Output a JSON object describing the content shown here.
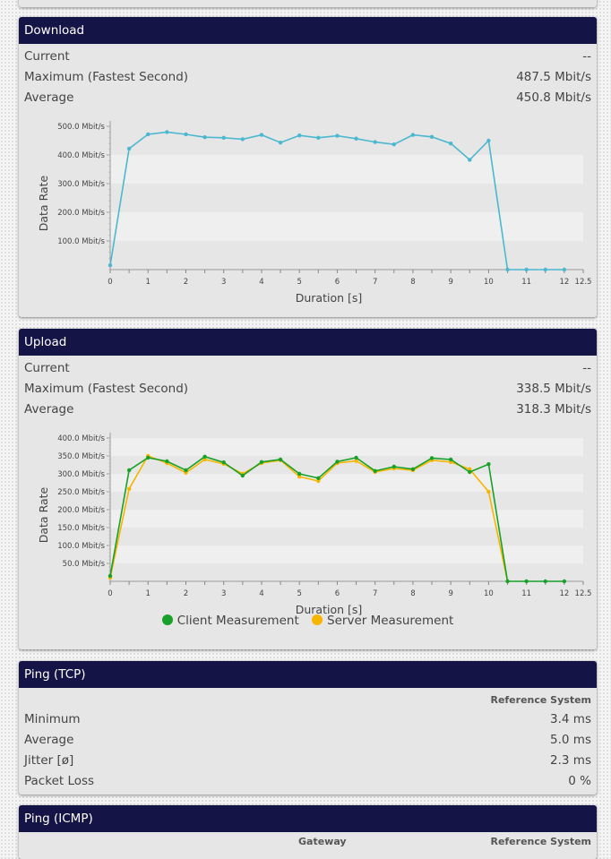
{
  "download": {
    "title": "Download",
    "rows": [
      {
        "label": "Current",
        "value": "--"
      },
      {
        "label": "Maximum (Fastest Second)",
        "value": "487.5 Mbit/s"
      },
      {
        "label": "Average",
        "value": "450.8 Mbit/s"
      }
    ]
  },
  "upload": {
    "title": "Upload",
    "rows": [
      {
        "label": "Current",
        "value": "--"
      },
      {
        "label": "Maximum (Fastest Second)",
        "value": "338.5 Mbit/s"
      },
      {
        "label": "Average",
        "value": "318.3 Mbit/s"
      }
    ],
    "legend": {
      "client": "Client Measurement",
      "server": "Server Measurement"
    }
  },
  "ping_tcp": {
    "title": "Ping (TCP)",
    "column": "Reference System",
    "rows": [
      {
        "label": "Minimum",
        "value": "3.4 ms"
      },
      {
        "label": "Average",
        "value": "5.0 ms"
      },
      {
        "label": "Jitter [ø]",
        "value": "2.3 ms"
      },
      {
        "label": "Packet Loss",
        "value": "0 %"
      }
    ]
  },
  "ping_icmp": {
    "title": "Ping (ICMP)",
    "col_gateway": "Gateway",
    "col_reference": "Reference System"
  },
  "colors": {
    "header": "#141446",
    "download_line": "#4bb8cf",
    "client": "#17a128",
    "server": "#f7b500"
  },
  "chart_data": [
    {
      "type": "line",
      "name": "download",
      "xlabel": "Duration [s]",
      "ylabel": "Data Rate",
      "xlim": [
        0,
        12.5
      ],
      "ylim": [
        0,
        500
      ],
      "x_ticks": [
        "0",
        "1",
        "2",
        "3",
        "4",
        "5",
        "6",
        "7",
        "8",
        "9",
        "10",
        "11",
        "12",
        "12.5"
      ],
      "y_ticks": [
        "100.0 Mbit/s",
        "200.0 Mbit/s",
        "300.0 Mbit/s",
        "400.0 Mbit/s",
        "500.0 Mbit/s"
      ],
      "series": [
        {
          "name": "Download",
          "color": "#4bb8cf",
          "x": [
            0,
            0.5,
            1,
            1.5,
            2,
            2.5,
            3,
            3.5,
            4,
            4.5,
            5,
            5.5,
            6,
            6.5,
            7,
            7.5,
            8,
            8.5,
            9,
            9.5,
            10,
            10.5,
            11,
            11.5,
            12
          ],
          "values": [
            15,
            422,
            472,
            480,
            472,
            462,
            460,
            455,
            470,
            443,
            468,
            460,
            467,
            457,
            445,
            437,
            470,
            463,
            440,
            383,
            450,
            0,
            0,
            0,
            0
          ]
        }
      ]
    },
    {
      "type": "line",
      "name": "upload",
      "xlabel": "Duration [s]",
      "ylabel": "Data Rate",
      "xlim": [
        0,
        12.5
      ],
      "ylim": [
        0,
        400
      ],
      "x_ticks": [
        "0",
        "1",
        "2",
        "3",
        "4",
        "5",
        "6",
        "7",
        "8",
        "9",
        "10",
        "11",
        "12",
        "12.5"
      ],
      "y_ticks": [
        "50.0 Mbit/s",
        "100.0 Mbit/s",
        "150.0 Mbit/s",
        "200.0 Mbit/s",
        "250.0 Mbit/s",
        "300.0 Mbit/s",
        "350.0 Mbit/s",
        "400.0 Mbit/s"
      ],
      "series": [
        {
          "name": "Client Measurement",
          "color": "#17a128",
          "x": [
            0,
            0.5,
            1,
            1.5,
            2,
            2.5,
            3,
            3.5,
            4,
            4.5,
            5,
            5.5,
            6,
            6.5,
            7,
            7.5,
            8,
            8.5,
            9,
            9.5,
            10,
            10.5,
            11,
            11.5,
            12
          ],
          "values": [
            15,
            310,
            345,
            335,
            310,
            348,
            332,
            295,
            333,
            340,
            300,
            288,
            334,
            345,
            308,
            320,
            313,
            344,
            340,
            305,
            327,
            0,
            0,
            0,
            0
          ]
        },
        {
          "name": "Server Measurement",
          "color": "#f7b500",
          "x": [
            0,
            0.5,
            1,
            1.5,
            2,
            2.5,
            3,
            3.5,
            4,
            4.5,
            5,
            5.5,
            6,
            6.5,
            7,
            7.5,
            8,
            8.5,
            9,
            9.5,
            10,
            10.5
          ],
          "values": [
            10,
            258,
            350,
            330,
            303,
            340,
            328,
            300,
            330,
            338,
            292,
            280,
            330,
            336,
            305,
            315,
            310,
            338,
            333,
            313,
            250,
            0
          ]
        }
      ]
    }
  ]
}
